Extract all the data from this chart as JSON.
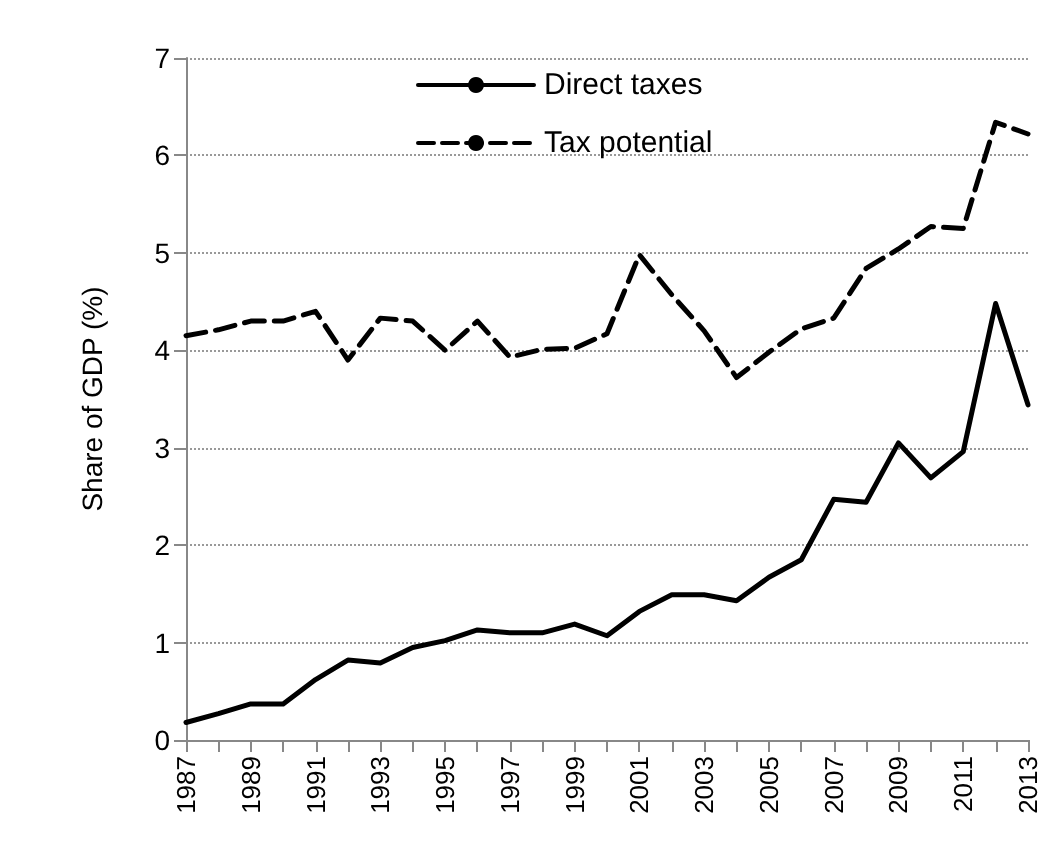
{
  "chart_data": {
    "type": "line",
    "ylabel": "Share of GDP (%)",
    "categories": [
      "1987",
      null,
      "1989",
      null,
      "1991",
      null,
      "1993",
      null,
      "1995",
      null,
      "1997",
      null,
      "1999",
      null,
      "2001",
      null,
      "2003",
      null,
      "2005",
      null,
      "2007",
      null,
      "2009",
      null,
      "2011",
      null,
      "2013"
    ],
    "series": [
      {
        "name": "Direct taxes",
        "color": "#000000",
        "line_style": "solid",
        "values": [
          0.18,
          0.27,
          0.37,
          0.37,
          0.62,
          0.82,
          0.79,
          0.95,
          1.02,
          1.13,
          1.1,
          1.1,
          1.19,
          1.07,
          1.32,
          1.49,
          1.49,
          1.43,
          1.67,
          1.85,
          2.47,
          2.44,
          3.05,
          2.69,
          2.96,
          4.48,
          3.44
        ]
      },
      {
        "name": "Tax potential",
        "color": "#000000",
        "line_style": "dashed",
        "values": [
          4.15,
          4.21,
          4.3,
          4.3,
          4.4,
          3.9,
          4.33,
          4.3,
          4.0,
          4.3,
          3.93,
          4.01,
          4.02,
          4.17,
          4.98,
          4.57,
          4.2,
          3.72,
          3.98,
          4.22,
          4.33,
          4.84,
          5.04,
          5.27,
          5.25,
          6.34,
          6.22
        ]
      }
    ],
    "ylim": [
      0,
      7
    ],
    "yticks": [
      0,
      1,
      2,
      3,
      4,
      5,
      6,
      7
    ],
    "grid": "y",
    "legend": "top",
    "marker": "none"
  }
}
